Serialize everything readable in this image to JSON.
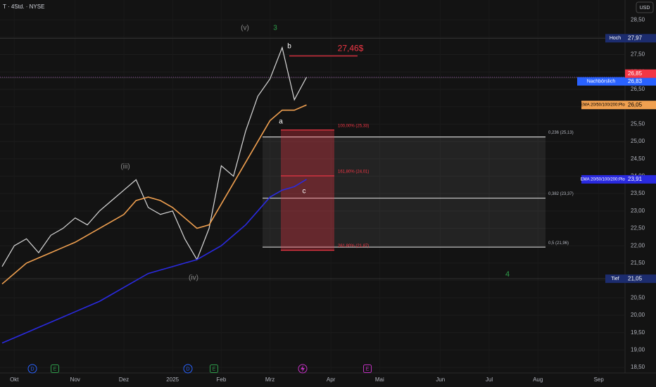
{
  "chart_data": {
    "type": "line",
    "title": "T · 4Std. · NYSE",
    "currency": "USD",
    "categories": [
      null,
      "Okt",
      null,
      null,
      null,
      null,
      "Nov",
      null,
      null,
      null,
      "Dez",
      null,
      null,
      null,
      "2025",
      null,
      null,
      null,
      "Feb",
      null,
      null,
      null,
      "Mrz",
      null,
      null,
      null,
      null,
      "Apr",
      null,
      null,
      null,
      "Mai",
      null,
      null,
      null,
      null,
      "Jun",
      null,
      null,
      null,
      "Jul",
      null,
      null,
      null,
      "Aug",
      null,
      null,
      null,
      null,
      "Sep",
      null,
      null,
      null
    ],
    "series": [
      {
        "color": "#d9d9d9",
        "values": [
          21.4,
          22.0,
          22.2,
          21.8,
          22.3,
          22.5,
          22.8,
          22.6,
          23.0,
          23.3,
          23.6,
          23.9,
          23.1,
          22.9,
          23.0,
          22.2,
          21.6,
          22.5,
          24.3,
          24.0,
          25.3,
          26.3,
          26.8,
          27.7,
          26.2,
          26.85,
          null,
          null,
          null,
          null,
          null,
          null,
          null,
          null,
          null,
          null,
          null,
          null,
          null,
          null,
          null,
          null,
          null,
          null,
          null,
          null,
          null,
          null,
          null,
          null,
          null,
          null,
          null
        ]
      },
      {
        "name": "EMA 20/50/100/200:Plot",
        "color": "#f0a050",
        "last_label": {
          "value": 26.05,
          "label": "26,05"
        },
        "values": [
          20.9,
          21.2,
          21.5,
          21.65,
          21.8,
          21.95,
          22.1,
          22.3,
          22.5,
          22.7,
          22.9,
          23.3,
          23.4,
          23.3,
          23.1,
          22.8,
          22.5,
          22.6,
          23.2,
          23.8,
          24.4,
          25.0,
          25.6,
          25.9,
          25.9,
          26.05,
          null,
          null,
          null,
          null,
          null,
          null,
          null,
          null,
          null,
          null,
          null,
          null,
          null,
          null,
          null,
          null,
          null,
          null,
          null,
          null,
          null,
          null,
          null,
          null,
          null,
          null,
          null
        ]
      },
      {
        "name": "EMA 20/50/100/200:Plot",
        "color": "#2a2ae0",
        "last_label": {
          "value": 23.91,
          "label": "23,91"
        },
        "values": [
          19.2,
          19.35,
          19.5,
          19.65,
          19.8,
          19.95,
          20.1,
          20.25,
          20.4,
          20.6,
          20.8,
          21.0,
          21.2,
          21.3,
          21.4,
          21.5,
          21.6,
          21.8,
          22.0,
          22.3,
          22.6,
          23.0,
          23.4,
          23.6,
          23.7,
          23.91,
          null,
          null,
          null,
          null,
          null,
          null,
          null,
          null,
          null,
          null,
          null,
          null,
          null,
          null,
          null,
          null,
          null,
          null,
          null,
          null,
          null,
          null,
          null,
          null,
          null,
          null,
          null
        ]
      }
    ],
    "ylim": [
      18.34,
      29.07
    ],
    "yticks": [
      {
        "value": 18.5,
        "label": "18,50"
      },
      {
        "value": 19,
        "label": "19,00"
      },
      {
        "value": 19.5,
        "label": "19,50"
      },
      {
        "value": 20,
        "label": "20,00"
      },
      {
        "value": 20.5,
        "label": "20,50"
      },
      {
        "value": 21,
        "label": "21,00"
      },
      {
        "value": 21.5,
        "label": "21,50"
      },
      {
        "value": 22,
        "label": "22,00"
      },
      {
        "value": 22.5,
        "label": "22,50"
      },
      {
        "value": 23,
        "label": "23,00"
      },
      {
        "value": 23.5,
        "label": "23,50"
      },
      {
        "value": 24,
        "label": "24,00"
      },
      {
        "value": 24.5,
        "label": "24,50"
      },
      {
        "value": 25,
        "label": "25,00"
      },
      {
        "value": 25.5,
        "label": "25,50"
      },
      {
        "value": 26,
        "label": "26,00"
      },
      {
        "value": 26.5,
        "label": "26,50"
      },
      {
        "value": 27,
        "label": "27,00"
      },
      {
        "value": 27.5,
        "label": "27,50"
      },
      {
        "value": 28,
        "label": "28,00"
      },
      {
        "value": 28.5,
        "label": "28,50"
      }
    ],
    "grid": true,
    "price_labels": [
      {
        "name": "Hoch",
        "value": 27.97,
        "label": "27,97",
        "color": "#1c2c6e"
      },
      {
        "name": "Nachbörslich",
        "value": 26.83,
        "label": "26,83",
        "color": "#2962ff"
      },
      {
        "value": 26.85,
        "label": "26,85",
        "color": "#f23645"
      },
      {
        "name": "Tief",
        "value": 21.05,
        "label": "21,05",
        "color": "#1c2c6e"
      }
    ],
    "fib_retracement": [
      {
        "value": 25.13,
        "label": "0,236 (25,13)"
      },
      {
        "value": 23.37,
        "label": "0,382 (23,37)"
      },
      {
        "value": 21.96,
        "label": "0,5 (21,96)"
      }
    ],
    "fib_extension": [
      {
        "value": 25.33,
        "label": "100,00% (25,33)"
      },
      {
        "value": 24.01,
        "label": "161,80% (24,01)"
      },
      {
        "value": 21.87,
        "label": "261,80% (21,87)"
      }
    ],
    "target": {
      "value": 27.46,
      "label": "27,46$"
    },
    "annotations": [
      "(v)",
      "3",
      "b",
      "a",
      "c",
      "(iii)",
      "(iv)",
      "4"
    ],
    "events": [
      "D",
      "E",
      "D",
      "E",
      "E"
    ]
  }
}
